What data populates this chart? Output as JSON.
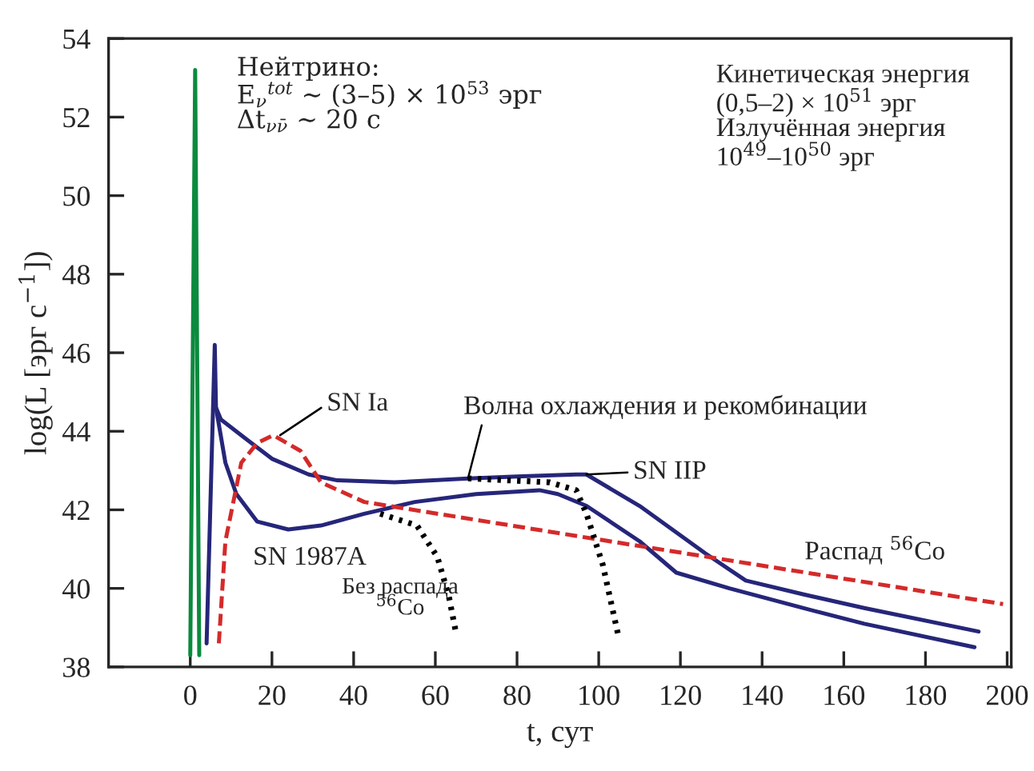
{
  "chart_data": {
    "type": "line",
    "xlabel": "t, сут",
    "ylabel": "log(L [эрг с$^{−1}$])",
    "xlim": [
      -20,
      201
    ],
    "ylim": [
      38,
      54
    ],
    "xticks": [
      0,
      20,
      40,
      60,
      80,
      100,
      120,
      140,
      160,
      180,
      200
    ],
    "yticks": [
      38,
      40,
      42,
      44,
      46,
      48,
      50,
      52,
      54
    ],
    "grid": false,
    "series": [
      {
        "color": "#0b8a3e",
        "line_style": "solid",
        "x": [
          0,
          1.2,
          2.2
        ],
        "values": [
          38.3,
          53.2,
          38.3
        ]
      },
      {
        "color": "#26267a",
        "line_style": "solid",
        "x": [
          4,
          6,
          6.3,
          7.5,
          13.7,
          20,
          29,
          36,
          50,
          68,
          80,
          94.5,
          97,
          110,
          126,
          136,
          150,
          165,
          193
        ],
        "values": [
          38.6,
          46.2,
          44.6,
          44.3,
          43.8,
          43.3,
          42.9,
          42.75,
          42.7,
          42.8,
          42.85,
          42.9,
          42.9,
          42.1,
          40.9,
          40.2,
          39.85,
          39.5,
          38.9
        ]
      },
      {
        "color": "#26267a",
        "line_style": "solid",
        "x": [
          6.3,
          8.6,
          11.3,
          16.4,
          24,
          32,
          42.6,
          55,
          70,
          85.5,
          90,
          97,
          110,
          119,
          132,
          150,
          165,
          192
        ],
        "values": [
          44.6,
          43.2,
          42.4,
          41.7,
          41.5,
          41.6,
          41.9,
          42.2,
          42.4,
          42.5,
          42.4,
          42.1,
          41.2,
          40.4,
          40.0,
          39.5,
          39.1,
          38.5
        ]
      },
      {
        "color": "#d42a2a",
        "line_style": "dashed",
        "x": [
          7,
          8.6,
          12.5,
          16.4,
          20.3,
          27,
          32,
          42.6,
          87,
          199
        ],
        "values": [
          38.6,
          41.2,
          43.2,
          43.7,
          43.9,
          43.5,
          42.7,
          42.2,
          41.46,
          39.6
        ]
      },
      {
        "color": "#000000",
        "line_style": "dotted",
        "x": [
          46.5,
          55.5,
          60.5,
          63.3,
          65
        ],
        "values": [
          41.9,
          41.6,
          40.8,
          39.8,
          38.9
        ]
      },
      {
        "color": "#000000",
        "line_style": "dotted",
        "x": [
          68,
          88,
          94.5,
          97,
          101,
          105
        ],
        "values": [
          42.8,
          42.7,
          42.5,
          41.9,
          40.6,
          38.7
        ]
      }
    ],
    "annotations": [
      "Нейтрино:\nE$_{ν}$$^{tot}$ ∼ (3–5) × 10$^{53}$ эрг\nΔt$_{νν̄}$ ∼ 20 с",
      "Кинетическая энергия\n(0,5–2) × 10$^{51}$ эрг\nИзлучённая энергия\n10$^{49}$–10$^{50}$ эрг",
      {
        "text": "SN Ia",
        "x": 22,
        "y": 43.9
      },
      {
        "text": "Волна охлаждения и рекомбинации",
        "x": 68,
        "y": 42.8
      },
      {
        "text": "SN IIP",
        "x": 97,
        "y": 42.9
      },
      "SN 1987A",
      "Без распада\n$^{56}$Co",
      "Распад $^{56}$Co"
    ]
  }
}
